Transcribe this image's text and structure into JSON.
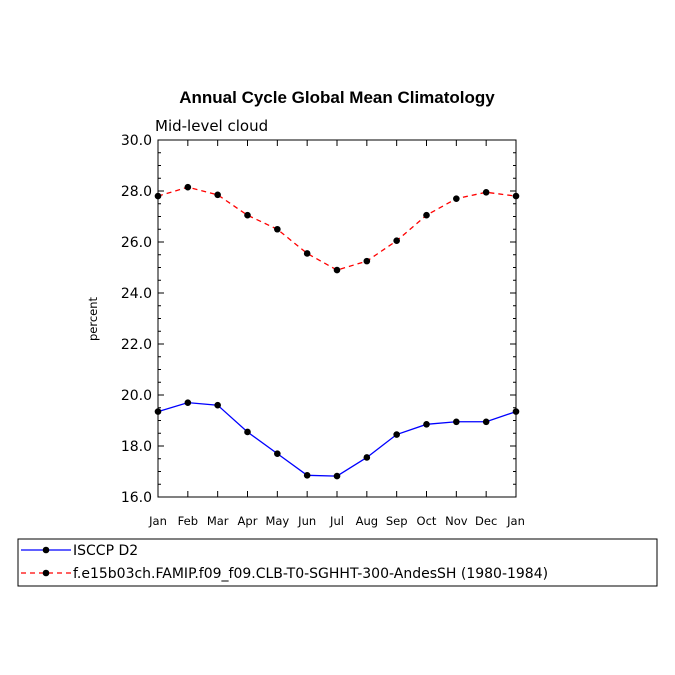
{
  "chart_data": {
    "type": "line",
    "title": "Annual Cycle Global Mean Climatology",
    "subtitle": "Mid-level cloud",
    "xlabel": "",
    "ylabel": "percent",
    "categories": [
      "Jan",
      "Feb",
      "Mar",
      "Apr",
      "May",
      "Jun",
      "Jul",
      "Aug",
      "Sep",
      "Oct",
      "Nov",
      "Dec",
      "Jan"
    ],
    "ylim": [
      16.0,
      30.0
    ],
    "yticks": [
      "16.0",
      "18.0",
      "20.0",
      "22.0",
      "24.0",
      "26.0",
      "28.0",
      "30.0"
    ],
    "grid": false,
    "legend_position": "bottom",
    "series": [
      {
        "name": "ISCCP D2",
        "color": "#0000ff",
        "line_style": "solid",
        "marker": "filled-circle",
        "values": [
          19.35,
          19.7,
          19.6,
          18.55,
          17.7,
          16.85,
          16.82,
          17.55,
          18.45,
          18.85,
          18.95,
          18.95,
          19.35
        ]
      },
      {
        "name": "f.e15b03ch.FAMIP.f09_f09.CLB-T0-SGHHT-300-AndesSH (1980-1984)",
        "color": "#ff0000",
        "line_style": "dashed",
        "marker": "filled-circle",
        "values": [
          27.8,
          28.15,
          27.85,
          27.05,
          26.5,
          25.55,
          24.9,
          25.25,
          26.05,
          27.05,
          27.7,
          27.95,
          27.8
        ]
      }
    ]
  }
}
